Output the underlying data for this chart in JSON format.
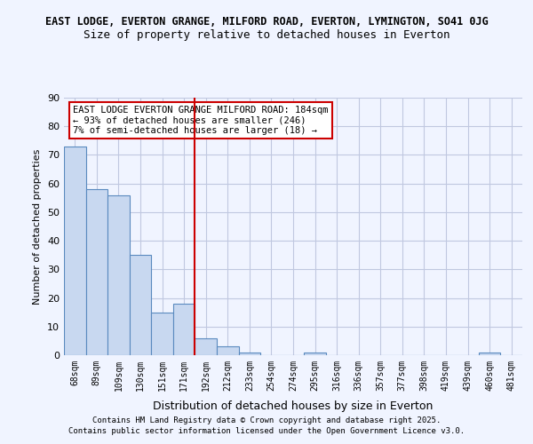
{
  "title1": "EAST LODGE, EVERTON GRANGE, MILFORD ROAD, EVERTON, LYMINGTON, SO41 0JG",
  "title2": "Size of property relative to detached houses in Everton",
  "xlabel": "Distribution of detached houses by size in Everton",
  "ylabel": "Number of detached properties",
  "categories": [
    "68sqm",
    "89sqm",
    "109sqm",
    "130sqm",
    "151sqm",
    "171sqm",
    "192sqm",
    "212sqm",
    "233sqm",
    "254sqm",
    "274sqm",
    "295sqm",
    "316sqm",
    "336sqm",
    "357sqm",
    "377sqm",
    "398sqm",
    "419sqm",
    "439sqm",
    "460sqm",
    "481sqm"
  ],
  "values": [
    73,
    58,
    56,
    35,
    15,
    18,
    6,
    3,
    1,
    0,
    0,
    1,
    0,
    0,
    0,
    0,
    0,
    0,
    0,
    1,
    0
  ],
  "bar_color": "#c8d8f0",
  "bar_edge_color": "#5a8abf",
  "vline_x": 6,
  "vline_color": "#cc0000",
  "annotation_title": "EAST LODGE EVERTON GRANGE MILFORD ROAD: 184sqm",
  "annotation_line1": "← 93% of detached houses are smaller (246)",
  "annotation_line2": "7% of semi-detached houses are larger (18) →",
  "annotation_box_color": "#ffffff",
  "annotation_box_edge": "#cc0000",
  "ylim": [
    0,
    90
  ],
  "yticks": [
    0,
    10,
    20,
    30,
    40,
    50,
    60,
    70,
    80,
    90
  ],
  "footer1": "Contains HM Land Registry data © Crown copyright and database right 2025.",
  "footer2": "Contains public sector information licensed under the Open Government Licence v3.0.",
  "bg_color": "#f0f4ff",
  "grid_color": "#c0c8e0"
}
